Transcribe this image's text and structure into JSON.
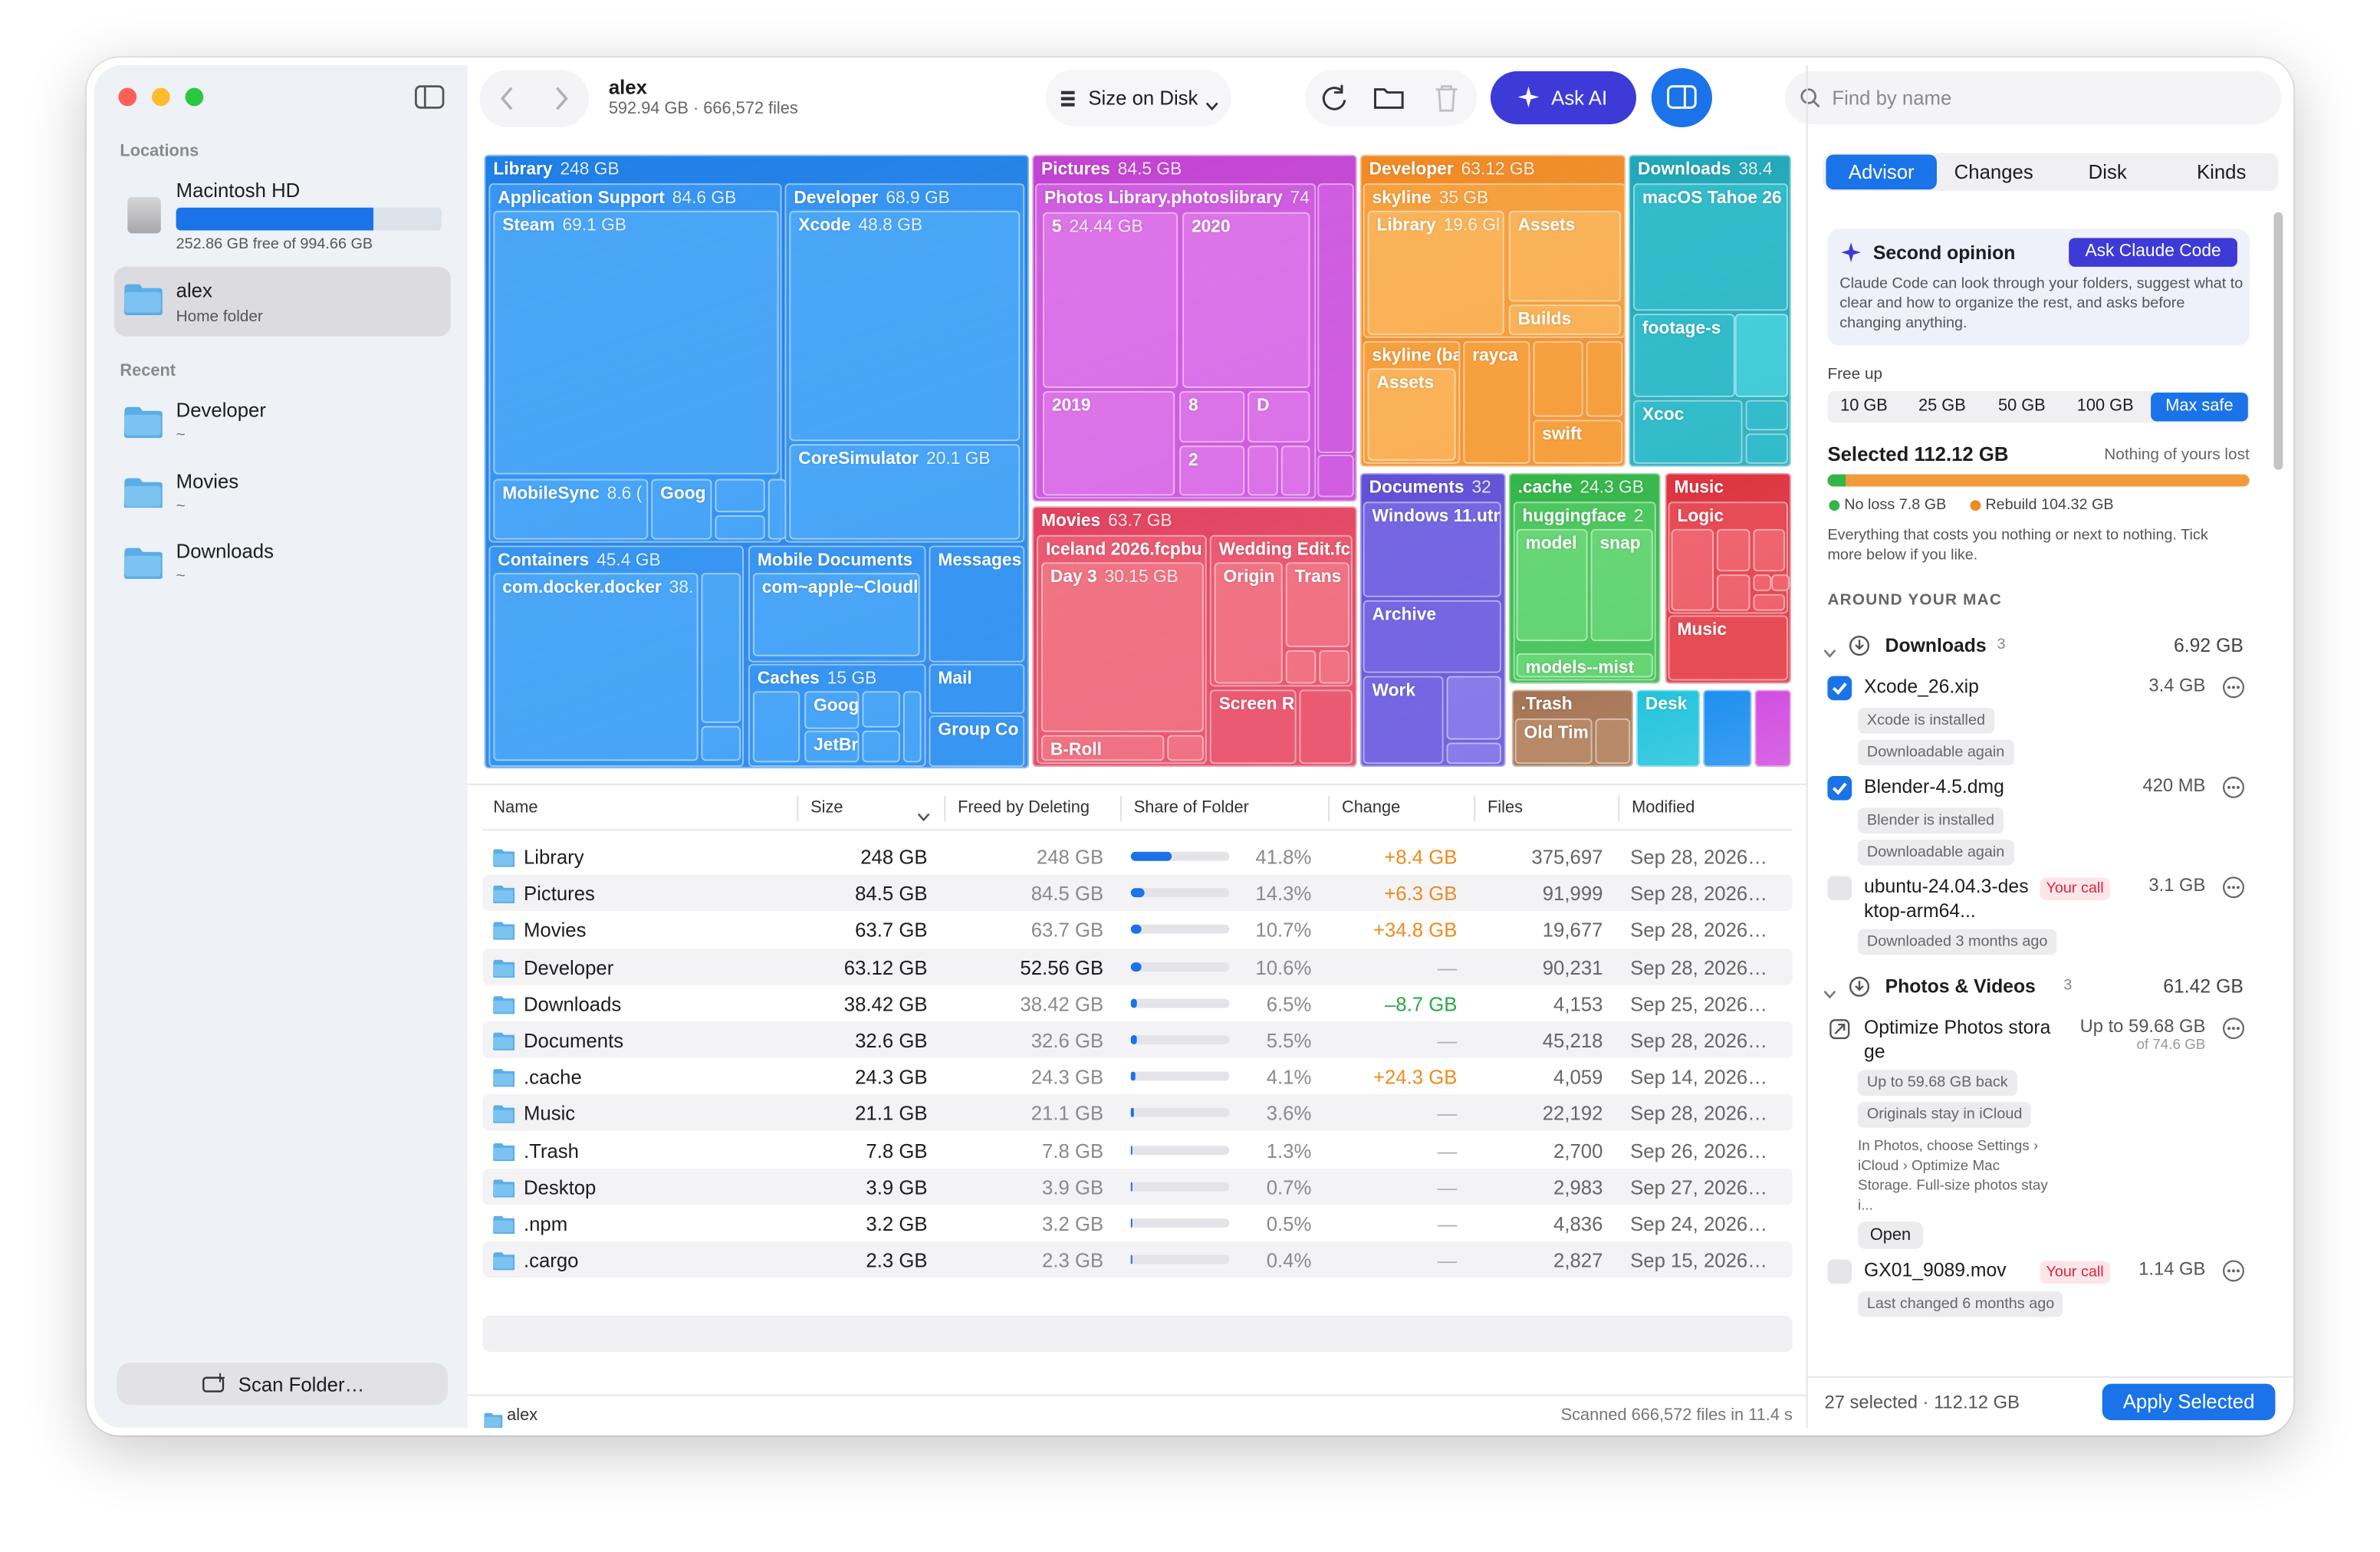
{
  "sidebar": {
    "locations_heading": "Locations",
    "disk_name": "Macintosh HD",
    "disk_free": "252.86 GB free of 994.66 GB",
    "home_name": "alex",
    "home_sub": "Home folder",
    "recent_heading": "Recent",
    "recent": [
      {
        "name": "Developer",
        "path": "~"
      },
      {
        "name": "Movies",
        "path": "~"
      },
      {
        "name": "Downloads",
        "path": "~"
      }
    ],
    "scan_button": "Scan Folder…"
  },
  "toolbar": {
    "title": "alex",
    "subtitle": "592.94 GB · 666,572 files",
    "sort": "Size on Disk",
    "ask_ai": "Ask AI",
    "search": "Find by name"
  },
  "treemap": {
    "tiles": [
      {
        "label": "Library",
        "size": "248 GB"
      },
      {
        "label": "Application Support",
        "size": "84.6 GB"
      },
      {
        "label": "Steam",
        "size": "69.1 GB"
      },
      {
        "label": "MobileSync",
        "size": "8.6 ("
      },
      {
        "label": "Goog"
      },
      {
        "label": "Developer",
        "size": "68.9 GB"
      },
      {
        "label": "Xcode",
        "size": "48.8 GB"
      },
      {
        "label": "CoreSimulator",
        "size": "20.1 GB"
      },
      {
        "label": "Containers",
        "size": "45.4 GB"
      },
      {
        "label": "com.docker.docker",
        "size": "38."
      },
      {
        "label": "Mobile Documents"
      },
      {
        "label": "com~apple~Cloudl"
      },
      {
        "label": "Messages"
      },
      {
        "label": "Caches",
        "size": "15 GB"
      },
      {
        "label": "Goog"
      },
      {
        "label": "JetBr"
      },
      {
        "label": "Mail"
      },
      {
        "label": "Group Co"
      },
      {
        "label": "Pictures",
        "size": "84.5 GB"
      },
      {
        "label": "Photos Library.photoslibrary",
        "size": "74"
      },
      {
        "label": "5",
        "size": "24.44 GB"
      },
      {
        "label": "2020"
      },
      {
        "label": "2019"
      },
      {
        "label": "8"
      },
      {
        "label": "D"
      },
      {
        "label": "2"
      },
      {
        "label": "Movies",
        "size": "63.7 GB"
      },
      {
        "label": "Iceland 2026.fcpbu"
      },
      {
        "label": "Day 3",
        "size": "30.15 GB"
      },
      {
        "label": "B-Roll"
      },
      {
        "label": "Wedding Edit.fc"
      },
      {
        "label": "Origin"
      },
      {
        "label": "Trans"
      },
      {
        "label": "Screen R"
      },
      {
        "label": "Developer",
        "size": "63.12 GB"
      },
      {
        "label": "skyline",
        "size": "35 GB"
      },
      {
        "label": "Library",
        "size": "19.6 Gl"
      },
      {
        "label": "Assets"
      },
      {
        "label": "Builds"
      },
      {
        "label": "skyline (ba"
      },
      {
        "label": "Assets"
      },
      {
        "label": "rayca"
      },
      {
        "label": "swift"
      },
      {
        "label": "Downloads",
        "size": "38.4"
      },
      {
        "label": "macOS Tahoe 26"
      },
      {
        "label": "footage-s"
      },
      {
        "label": "Xcoc"
      },
      {
        "label": "Documents",
        "size": "32"
      },
      {
        "label": "Windows 11.utm"
      },
      {
        "label": "Archive"
      },
      {
        "label": "Work"
      },
      {
        "label": ".cache",
        "size": "24.3 GB"
      },
      {
        "label": "huggingface",
        "size": "2"
      },
      {
        "label": "model"
      },
      {
        "label": "snap"
      },
      {
        "label": "models--mist"
      },
      {
        "label": "Music"
      },
      {
        "label": "Logic"
      },
      {
        "label": "Music"
      },
      {
        "label": ".Trash"
      },
      {
        "label": "Old Tim"
      },
      {
        "label": "Desk"
      }
    ]
  },
  "table": {
    "headers": [
      "Name",
      "Size",
      "Freed by Deleting",
      "Share of Folder",
      "Change",
      "Files",
      "Modified"
    ],
    "rows": [
      [
        "Library",
        "248 GB",
        "248 GB",
        "41.8%",
        "+8.4 GB",
        "375,697",
        "Sep 28, 2026…"
      ],
      [
        "Pictures",
        "84.5 GB",
        "84.5 GB",
        "14.3%",
        "+6.3 GB",
        "91,999",
        "Sep 28, 2026…"
      ],
      [
        "Movies",
        "63.7 GB",
        "63.7 GB",
        "10.7%",
        "+34.8 GB",
        "19,677",
        "Sep 28, 2026…"
      ],
      [
        "Developer",
        "63.12 GB",
        "52.56 GB",
        "10.6%",
        "—",
        "90,231",
        "Sep 28, 2026…"
      ],
      [
        "Downloads",
        "38.42 GB",
        "38.42 GB",
        "6.5%",
        "–8.7 GB",
        "4,153",
        "Sep 25, 2026…"
      ],
      [
        "Documents",
        "32.6 GB",
        "32.6 GB",
        "5.5%",
        "—",
        "45,218",
        "Sep 28, 2026…"
      ],
      [
        ".cache",
        "24.3 GB",
        "24.3 GB",
        "4.1%",
        "+24.3 GB",
        "4,059",
        "Sep 14, 2026…"
      ],
      [
        "Music",
        "21.1 GB",
        "21.1 GB",
        "3.6%",
        "—",
        "22,192",
        "Sep 28, 2026…"
      ],
      [
        ".Trash",
        "7.8 GB",
        "7.8 GB",
        "1.3%",
        "—",
        "2,700",
        "Sep 26, 2026…"
      ],
      [
        "Desktop",
        "3.9 GB",
        "3.9 GB",
        "0.7%",
        "—",
        "2,983",
        "Sep 27, 2026…"
      ],
      [
        ".npm",
        "3.2 GB",
        "3.2 GB",
        "0.5%",
        "—",
        "4,836",
        "Sep 24, 2026…"
      ],
      [
        ".cargo",
        "2.3 GB",
        "2.3 GB",
        "0.4%",
        "—",
        "2,827",
        "Sep 15, 2026…"
      ]
    ]
  },
  "status": {
    "path": "alex",
    "scan": "Scanned 666,572 files in 11.4 s"
  },
  "advisor": {
    "tabs": [
      "Advisor",
      "Changes",
      "Disk",
      "Kinds"
    ],
    "card_title": "Second opinion",
    "card_button": "Ask Claude Code",
    "card_text": "Claude Code can look through your folders, suggest what to clear and how to organize the rest, and asks before changing anything.",
    "free_up_label": "Free up",
    "chips": [
      "10 GB",
      "25 GB",
      "50 GB",
      "100 GB",
      "Max safe"
    ],
    "selected": "Selected 112.12 GB",
    "selected_note": "Nothing of yours lost",
    "legend": [
      "No loss 7.8 GB",
      "Rebuild 104.32 GB"
    ],
    "description": "Everything that costs you nothing or next to nothing. Tick more below if you like.",
    "section_heading": "AROUND YOUR MAC",
    "groups": [
      {
        "name": "Downloads",
        "count": 3,
        "total": "6.92 GB",
        "items": [
          {
            "name": "Xcode_26.xip",
            "size": "3.4 GB",
            "checked": true,
            "tags": [
              "Xcode is installed",
              "Downloadable again"
            ]
          },
          {
            "name": "Blender-4.5.dmg",
            "size": "420 MB",
            "checked": true,
            "tags": [
              "Blender is installed",
              "Downloadable again"
            ]
          },
          {
            "name": "ubuntu-24.04.3-desktop-arm64...",
            "badge": "Your call",
            "size": "3.1 GB",
            "checked": false,
            "tags": [
              "Downloaded 3 months ago"
            ]
          }
        ]
      },
      {
        "name": "Photos & Videos",
        "count": 3,
        "total": "61.42 GB",
        "items": [
          {
            "name": "Optimize Photos storage",
            "size": "Up to 59.68 GB",
            "size_note": "of 74.6 GB",
            "tags": [
              "Up to 59.68 GB back",
              "Originals stay in iCloud"
            ],
            "note": "In Photos, choose Settings › iCloud › Optimize Mac Storage. Full-size photos stay i...",
            "action": "Open"
          },
          {
            "name": "GX01_9089.mov",
            "badge": "Your call",
            "size": "1.14 GB",
            "checked": false,
            "tags": [
              "Last changed 6 months ago"
            ]
          }
        ]
      }
    ],
    "footer": "27 selected · 112.12 GB",
    "apply": "Apply Selected"
  }
}
